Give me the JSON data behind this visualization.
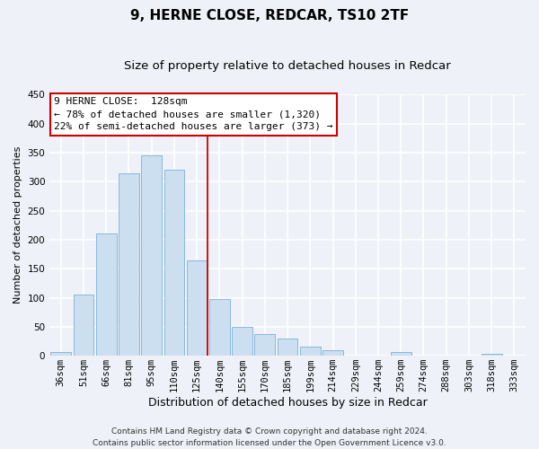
{
  "title": "9, HERNE CLOSE, REDCAR, TS10 2TF",
  "subtitle": "Size of property relative to detached houses in Redcar",
  "xlabel": "Distribution of detached houses by size in Redcar",
  "ylabel": "Number of detached properties",
  "categories": [
    "36sqm",
    "51sqm",
    "66sqm",
    "81sqm",
    "95sqm",
    "110sqm",
    "125sqm",
    "140sqm",
    "155sqm",
    "170sqm",
    "185sqm",
    "199sqm",
    "214sqm",
    "229sqm",
    "244sqm",
    "259sqm",
    "274sqm",
    "288sqm",
    "303sqm",
    "318sqm",
    "333sqm"
  ],
  "values": [
    7,
    105,
    210,
    315,
    345,
    320,
    165,
    97,
    50,
    37,
    30,
    15,
    9,
    0,
    0,
    6,
    0,
    0,
    0,
    4,
    0
  ],
  "bar_color": "#ccdff0",
  "bar_edge_color": "#7ab0d4",
  "vline_x_index": 6,
  "vline_color": "#cc0000",
  "annotation_title": "9 HERNE CLOSE:  128sqm",
  "annotation_line1": "← 78% of detached houses are smaller (1,320)",
  "annotation_line2": "22% of semi-detached houses are larger (373) →",
  "annotation_box_facecolor": "#ffffff",
  "annotation_box_edgecolor": "#cc0000",
  "ylim": [
    0,
    450
  ],
  "yticks": [
    0,
    50,
    100,
    150,
    200,
    250,
    300,
    350,
    400,
    450
  ],
  "footer_line1": "Contains HM Land Registry data © Crown copyright and database right 2024.",
  "footer_line2": "Contains public sector information licensed under the Open Government Licence v3.0.",
  "bg_color": "#eef2f8",
  "grid_color": "#ffffff",
  "title_fontsize": 11,
  "subtitle_fontsize": 9.5,
  "xlabel_fontsize": 9,
  "ylabel_fontsize": 8,
  "tick_fontsize": 7.5,
  "footer_fontsize": 6.5,
  "ann_fontsize": 8
}
